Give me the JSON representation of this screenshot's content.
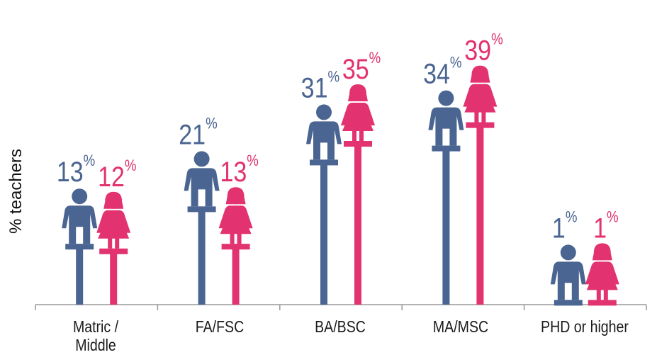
{
  "chart_data": {
    "type": "pictograph",
    "y_label": "% teachers",
    "categories": [
      "Matric / Middle",
      "FA/FSC",
      "BA/BSC",
      "MA/MSC",
      "PHD or higher"
    ],
    "series": [
      {
        "name": "Male",
        "color": "#4a6591",
        "values": [
          13,
          21,
          31,
          34,
          1
        ],
        "value_labels": [
          "13%",
          "21%",
          "31%",
          "34%",
          "1%"
        ]
      },
      {
        "name": "Female",
        "color": "#e2326f",
        "values": [
          12,
          13,
          35,
          39,
          1
        ],
        "value_labels": [
          "12%",
          "13%",
          "35%",
          "39%",
          "1%"
        ]
      }
    ],
    "ylim": [
      0,
      40
    ]
  }
}
